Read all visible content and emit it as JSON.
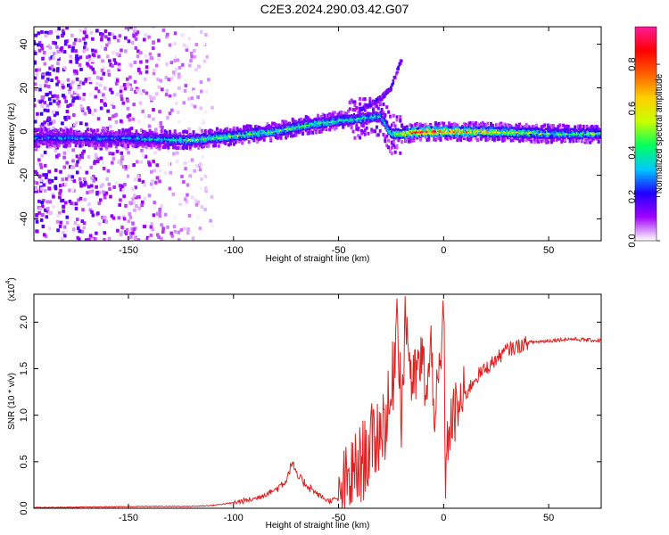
{
  "title": "C2E3.2024.290.03.42.G07",
  "colorbar": {
    "label": "Normalized spectral amplitude",
    "ticks": [
      "0.0",
      "0.2",
      "0.4",
      "0.6",
      "0.8"
    ],
    "tick_values": [
      0.0,
      0.2,
      0.4,
      0.6,
      0.8
    ],
    "range": [
      0,
      0.97
    ],
    "colors": [
      "#ffffff",
      "#a000ff",
      "#2000ff",
      "#00c8ff",
      "#00ff60",
      "#c8ff00",
      "#ffd000",
      "#ff6000",
      "#ff0000",
      "#ff1a9a"
    ]
  },
  "chart_data": [
    {
      "type": "heatmap",
      "xlabel": "Height of straight line (km)",
      "ylabel": "Frequency (Hz)",
      "xlim": [
        -195,
        75
      ],
      "ylim": [
        -50,
        48
      ],
      "xticks": [
        -150,
        -100,
        -50,
        0,
        50
      ],
      "yticks": [
        -40,
        -20,
        0,
        20,
        40
      ],
      "xtick_labels": [
        "-150",
        "-100",
        "-50",
        "0",
        "50"
      ],
      "ytick_labels": [
        "-40",
        "-20",
        "0",
        "20",
        "40"
      ],
      "ridge": {
        "x": [
          -195,
          -150,
          -120,
          -100,
          -80,
          -65,
          -50,
          -40,
          -30,
          -25,
          -20,
          -10,
          0,
          20,
          50,
          75
        ],
        "frequency": [
          -3,
          -3,
          -4,
          -2,
          0,
          3,
          5,
          6,
          7,
          -1,
          -1,
          0,
          0,
          0,
          -1,
          -1
        ],
        "amplitude": [
          0.35,
          0.35,
          0.5,
          0.55,
          0.5,
          0.5,
          0.45,
          0.45,
          0.4,
          0.5,
          0.75,
          0.95,
          0.85,
          0.7,
          0.5,
          0.5
        ]
      },
      "upper_branch": {
        "x": [
          -40,
          -30,
          -25,
          -20
        ],
        "frequency": [
          10,
          15,
          20,
          33
        ]
      },
      "noise_region_x": [
        -195,
        -110
      ]
    },
    {
      "type": "line",
      "xlabel": "Height of straight line (km)",
      "ylabel": "SNR (10 * v/v)",
      "y_multiplier_label": "(x10",
      "y_multiplier_exp": "4",
      "xlim": [
        -195,
        75
      ],
      "ylim": [
        0,
        2.3
      ],
      "xticks": [
        -150,
        -100,
        -50,
        0,
        50
      ],
      "yticks": [
        0,
        0.5,
        1.0,
        1.5,
        2.0
      ],
      "xtick_labels": [
        "-150",
        "-100",
        "-50",
        "0",
        "50"
      ],
      "ytick_labels": [
        "0.0",
        "0.5",
        "1.0",
        "1.5",
        "2.0"
      ],
      "series": [
        {
          "color": "#e02020",
          "x": [
            -195,
            -180,
            -160,
            -140,
            -120,
            -110,
            -100,
            -90,
            -80,
            -75,
            -72,
            -70,
            -65,
            -60,
            -55,
            -50,
            -45,
            -40,
            -35,
            -30,
            -25,
            -22,
            -20,
            -18,
            -15,
            -12,
            -10,
            -8,
            -6,
            -4,
            -2,
            -1,
            0,
            1,
            2,
            5,
            10,
            15,
            20,
            25,
            30,
            40,
            50,
            60,
            75
          ],
          "y": [
            0.01,
            0.01,
            0.015,
            0.02,
            0.02,
            0.03,
            0.06,
            0.1,
            0.2,
            0.3,
            0.5,
            0.35,
            0.25,
            0.15,
            0.08,
            0.1,
            0.3,
            0.45,
            0.65,
            0.85,
            1.1,
            2.2,
            1.0,
            2.1,
            1.3,
            1.5,
            1.6,
            1.2,
            1.7,
            1.0,
            1.4,
            1.6,
            2.3,
            0.15,
            0.8,
            1.0,
            1.2,
            1.4,
            1.5,
            1.6,
            1.7,
            1.78,
            1.8,
            1.82,
            1.8
          ]
        }
      ]
    }
  ]
}
